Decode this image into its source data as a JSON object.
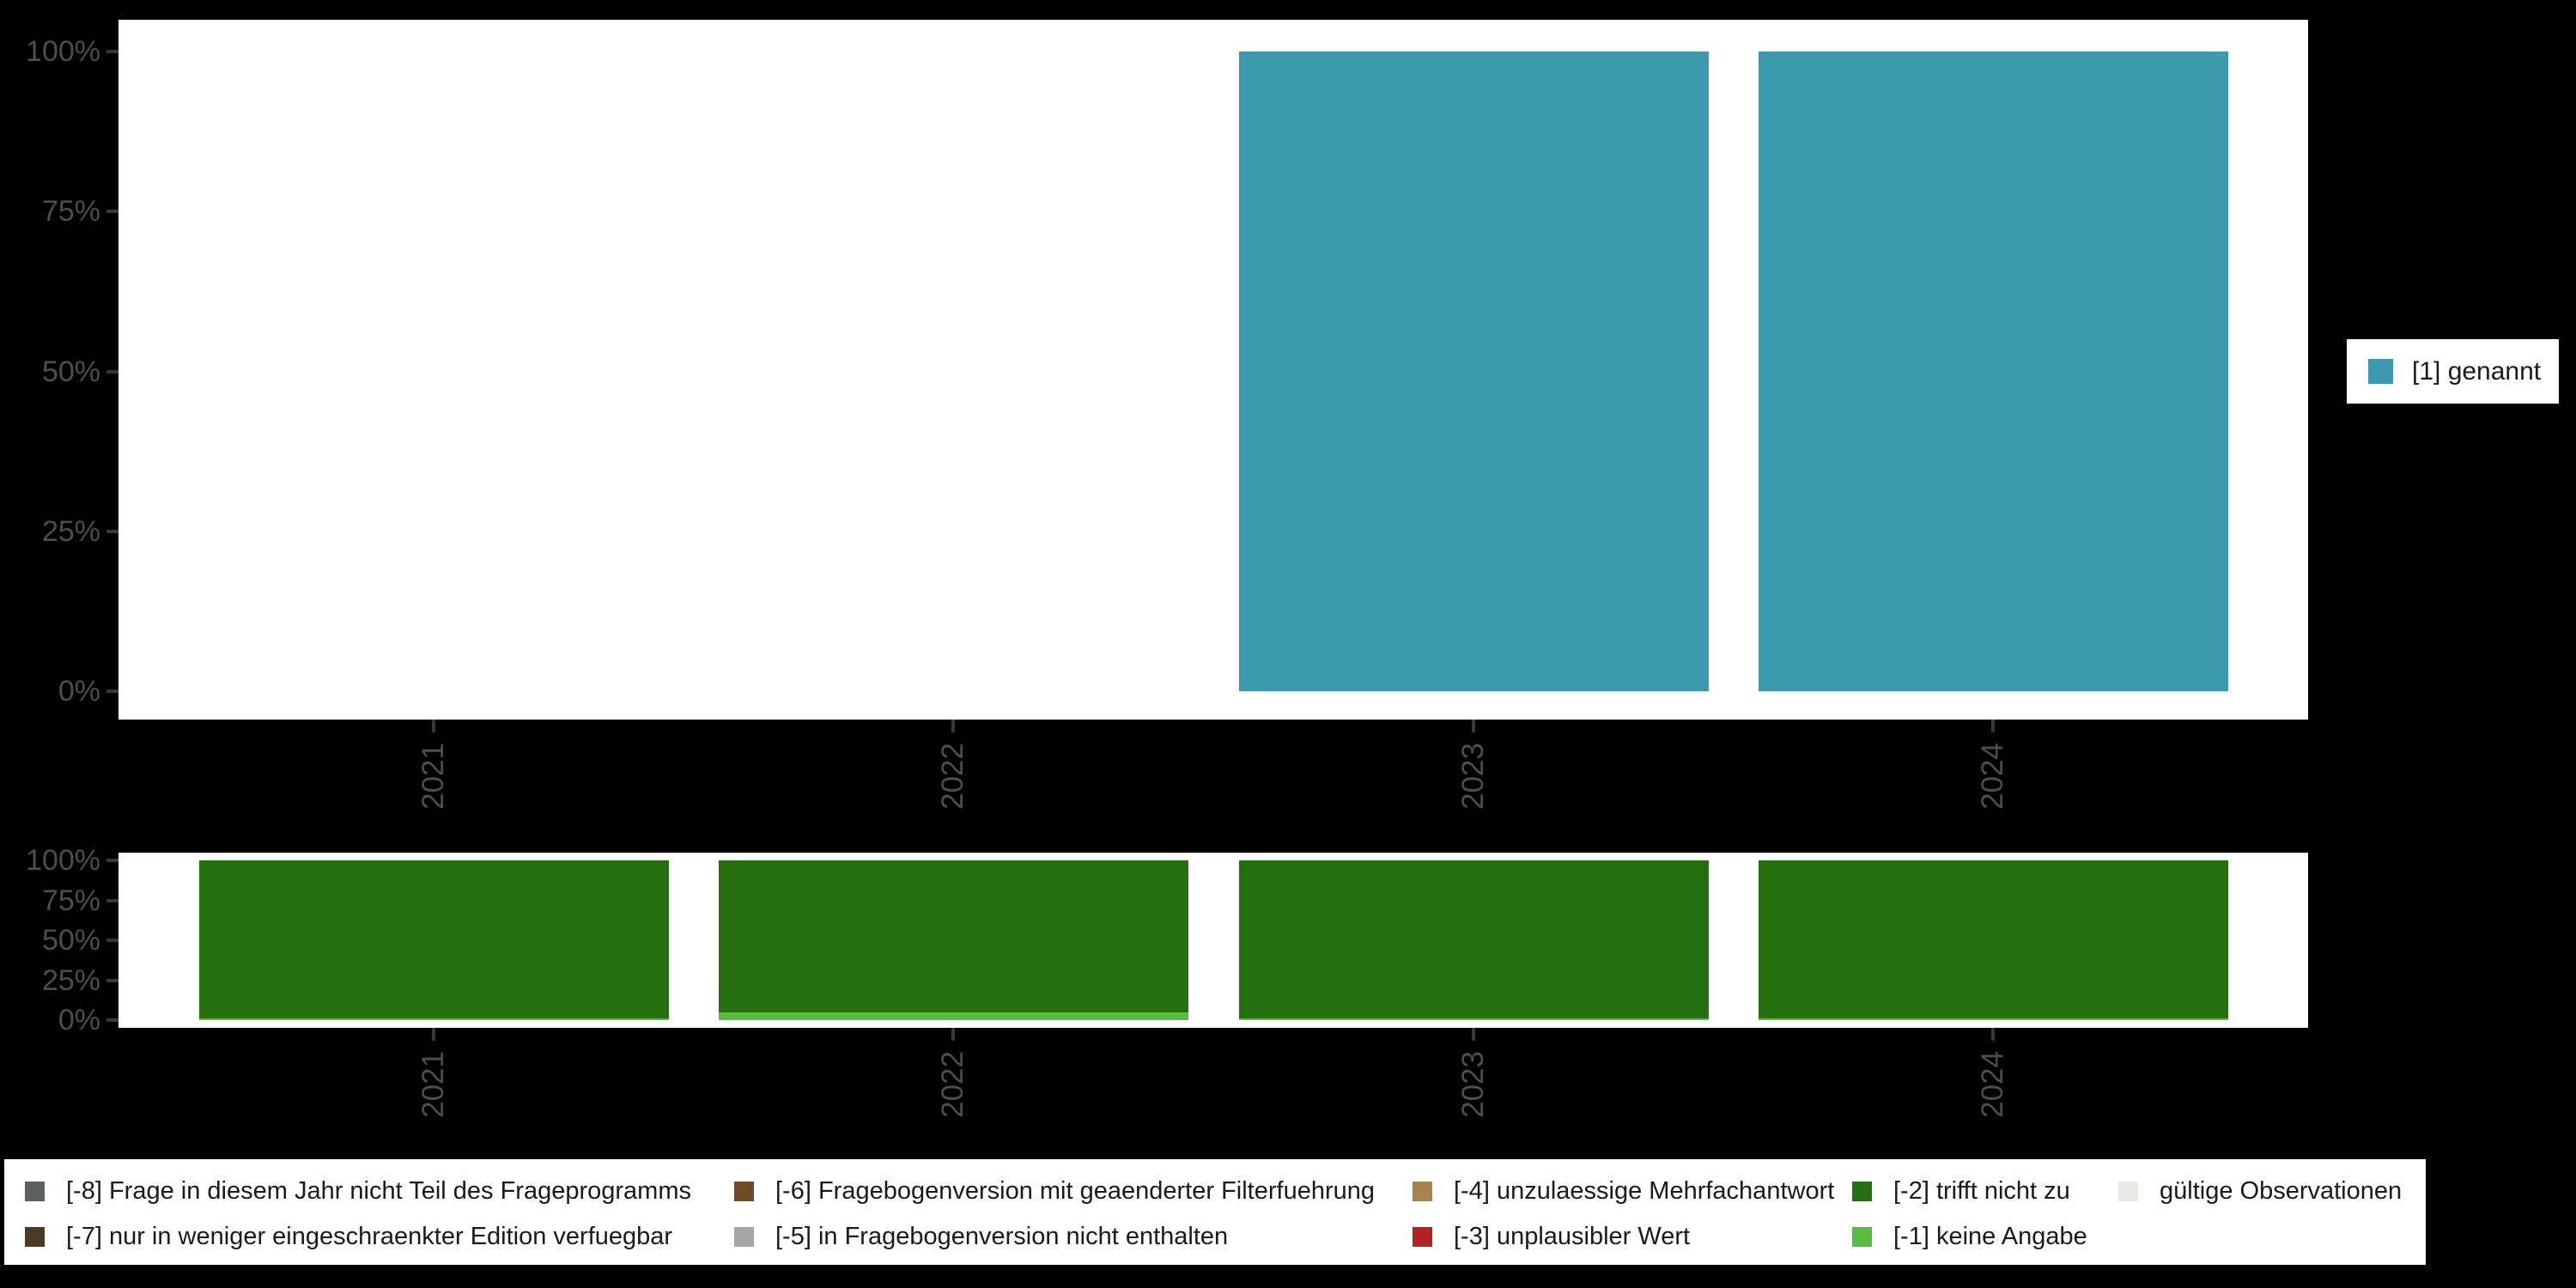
{
  "chart_data": [
    {
      "type": "bar",
      "panel": "top",
      "title": "",
      "categories": [
        "2021",
        "2022",
        "2023",
        "2024"
      ],
      "series": [
        {
          "name": "[1] genannt",
          "color": "#3D99AE",
          "values": [
            0,
            0,
            100,
            100
          ]
        }
      ],
      "stacked": false,
      "ylim": [
        0,
        100
      ],
      "ytick_values": [
        0,
        25,
        50,
        75,
        100
      ],
      "ytick_labels": [
        "0%",
        "25%",
        "50%",
        "75%",
        "100%"
      ],
      "grid": "off",
      "legend_position": "right"
    },
    {
      "type": "bar",
      "panel": "bottom",
      "title": "",
      "categories": [
        "2021",
        "2022",
        "2023",
        "2024"
      ],
      "series": [
        {
          "name": "[-1] keine Angabe",
          "color": "#57BD42",
          "values": [
            1,
            5,
            1,
            1
          ]
        },
        {
          "name": "[-2] trifft nicht zu",
          "color": "#266F10",
          "values": [
            99,
            95,
            99,
            99
          ]
        }
      ],
      "stacked": true,
      "ylim": [
        0,
        100
      ],
      "ytick_values": [
        0,
        25,
        50,
        75,
        100
      ],
      "ytick_labels": [
        "0%",
        "25%",
        "50%",
        "75%",
        "100%"
      ],
      "grid": "off",
      "legend_position": "bottom"
    }
  ],
  "right_legend": {
    "items": [
      {
        "label": "[1] genannt",
        "color": "#3D99AE"
      }
    ]
  },
  "bottom_legend": {
    "items": [
      {
        "label": "[-8] Frage in diesem Jahr nicht Teil des Frageprogramms",
        "color": "#59615A"
      },
      {
        "label": "[-7] nur in weniger eingeschraenkter Edition verfuegbar",
        "color": "#4C3A22"
      },
      {
        "label": "[-6] Fragebogenversion mit geaenderter Filterfuehrung",
        "color": "#6F4C27"
      },
      {
        "label": "[-5] in Fragebogenversion nicht enthalten",
        "color": "#A6A6A6"
      },
      {
        "label": "[-4] unzulaessige Mehrfachantwort",
        "color": "#A8834F"
      },
      {
        "label": "[-3] unplausibler Wert",
        "color": "#B32222"
      },
      {
        "label": "[-2] trifft nicht zu",
        "color": "#266F10"
      },
      {
        "label": "[-1] keine Angabe",
        "color": "#57BD42"
      },
      {
        "label": "gültige Observationen",
        "color": "#E7EAE3"
      }
    ]
  },
  "colors": {
    "background": "#000000",
    "panel": "#FFFFFF",
    "tick": "#383838",
    "axis_text": "#4D4D4D",
    "legend_text": "#1A1A1A"
  }
}
